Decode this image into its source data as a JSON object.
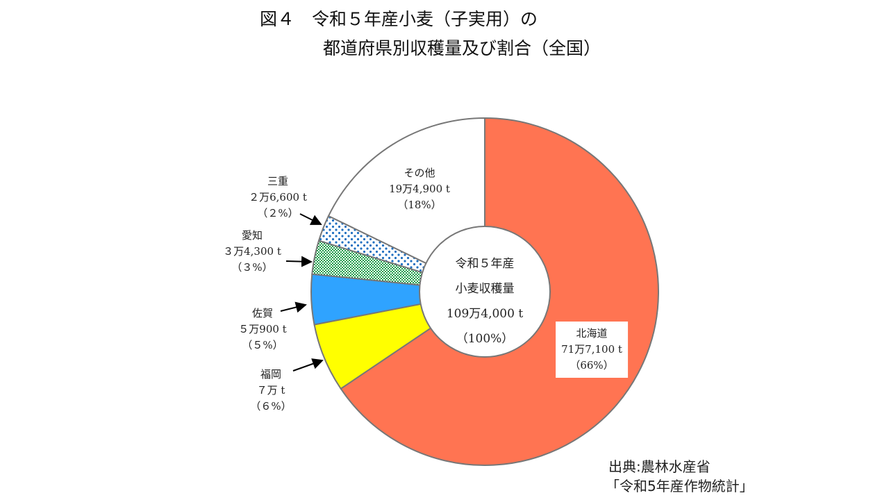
{
  "title_line1": "図４　令和５年産小麦（子実用）の",
  "title_line2": "都道府県別収穫量及び割合（全国）",
  "chart_data": {
    "type": "pie",
    "variant": "donut",
    "unit": "t",
    "center_label": {
      "line1": "令和５年産",
      "line2": "小麦収穫量",
      "value": "109万4,000 t",
      "percent": "（100%）"
    },
    "total": 1094000,
    "slices": [
      {
        "name": "北海道",
        "value": 717100,
        "value_label": "71万7,100 t",
        "percent_label": "（66%）",
        "color": "#FF7452",
        "pattern": "solid"
      },
      {
        "name": "福岡",
        "value": 70000,
        "value_label": "７万 t",
        "percent_label": "（６%）",
        "color": "#FFFF00",
        "pattern": "solid"
      },
      {
        "name": "佐賀",
        "value": 50900,
        "value_label": "５万900 t",
        "percent_label": "（５%）",
        "color": "#2FA3FF",
        "pattern": "solid"
      },
      {
        "name": "愛知",
        "value": 34300,
        "value_label": "３万4,300 t",
        "percent_label": "（３%）",
        "color": "#1E9E4A",
        "pattern": "checker"
      },
      {
        "name": "三重",
        "value": 26600,
        "value_label": "２万6,600 t",
        "percent_label": "（２%）",
        "color": "#1F6FC0",
        "pattern": "dots"
      },
      {
        "name": "その他",
        "value": 194900,
        "value_label": "19万4,900 t",
        "percent_label": "（18%）",
        "color": "#FFFFFF",
        "pattern": "solid"
      }
    ],
    "start": "top",
    "direction": "clockwise"
  },
  "source_line1": "出典:農林水産省",
  "source_line2": "「令和5年産作物統計」"
}
